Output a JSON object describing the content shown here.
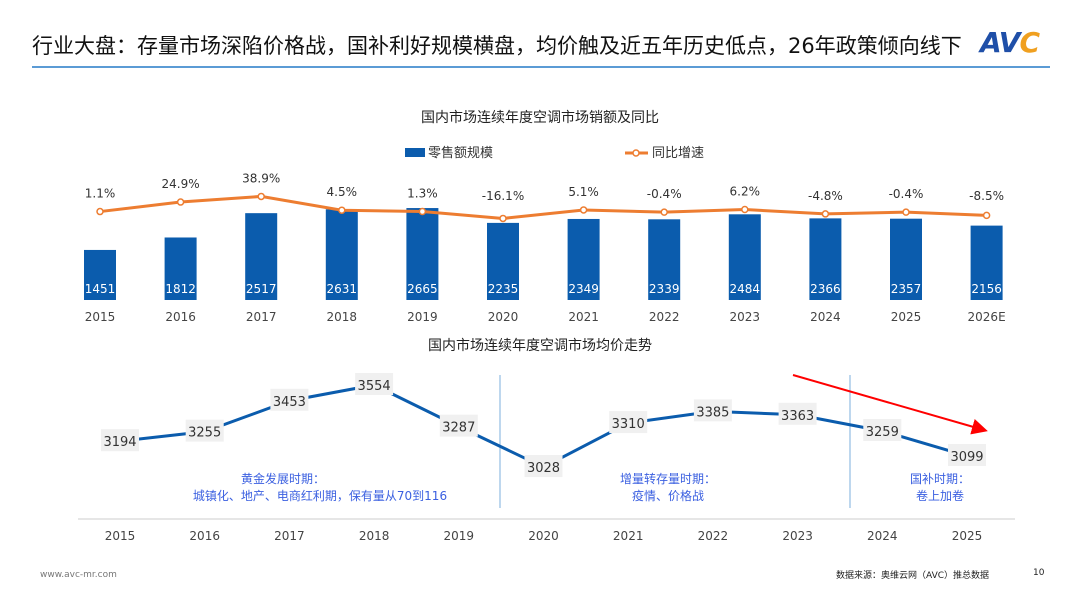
{
  "header": {
    "title": "行业大盘：存量市场深陷价格战，国补利好规模横盘，均价触及近五年历史低点，26年政策倾向线下",
    "logo": "AVC"
  },
  "chart_data": [
    {
      "type": "bar+line",
      "title": "国内市场连续年度空调市场销额及同比",
      "categories": [
        "2015",
        "2016",
        "2017",
        "2018",
        "2019",
        "2020",
        "2021",
        "2022",
        "2023",
        "2024",
        "2025",
        "2026E"
      ],
      "series": [
        {
          "name": "零售额规模",
          "type": "bar",
          "color": "#0b5cad",
          "values": [
            1451,
            1812,
            2517,
            2631,
            2665,
            2235,
            2349,
            2339,
            2484,
            2366,
            2357,
            2156
          ]
        },
        {
          "name": "同比增速",
          "type": "line",
          "color": "#ed7d31",
          "values": [
            1.1,
            24.9,
            38.9,
            4.5,
            1.3,
            -16.1,
            5.1,
            -0.4,
            6.2,
            -4.8,
            -0.4,
            -8.5
          ],
          "labels": [
            "1.1%",
            "24.9%",
            "38.9%",
            "4.5%",
            "1.3%",
            "-16.1%",
            "5.1%",
            "-0.4%",
            "6.2%",
            "-4.8%",
            "-0.4%",
            "-8.5%"
          ]
        }
      ],
      "legend": "top"
    },
    {
      "type": "line",
      "title": "国内市场连续年度空调市场均价走势",
      "categories": [
        "2015",
        "2016",
        "2017",
        "2018",
        "2019",
        "2020",
        "2021",
        "2022",
        "2023",
        "2024",
        "2025"
      ],
      "values": [
        3194,
        3255,
        3453,
        3554,
        3287,
        3028,
        3310,
        3385,
        3363,
        3259,
        3099
      ],
      "color": "#0b5cad",
      "annotations": [
        {
          "lines": [
            "黄金发展时期：",
            "城镇化、地产、电商红利期，保有量从70到116"
          ]
        },
        {
          "lines": [
            "增量转存量时期：",
            "疫情、价格战"
          ]
        },
        {
          "lines": [
            "国补时期：",
            "卷上加卷"
          ]
        }
      ],
      "annotation_color": "#3a5fe0",
      "trend_arrow_color": "#ff0000"
    }
  ],
  "footer": {
    "website": "www.avc-mr.com",
    "source": "数据来源：奥维云网（AVC）推总数据",
    "page": "10"
  }
}
